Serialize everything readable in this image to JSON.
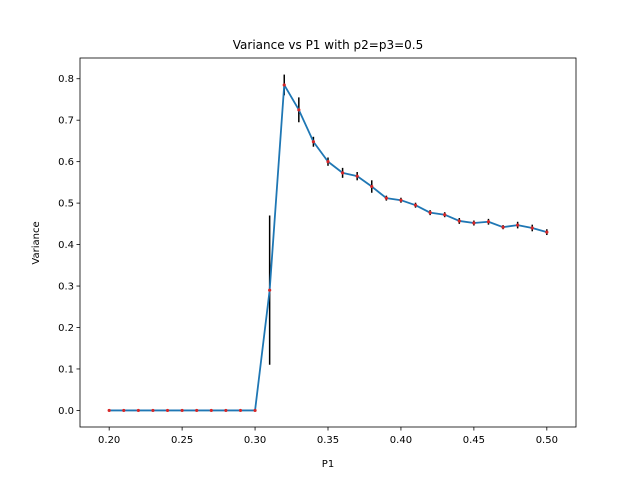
{
  "chart_data": {
    "type": "line",
    "title": "Variance vs P1 with p2=p3=0.5",
    "xlabel": "P1",
    "ylabel": "Variance",
    "xlim": [
      0.18,
      0.52
    ],
    "ylim": [
      -0.04,
      0.85
    ],
    "grid": false,
    "legend": "none",
    "x_ticks": [
      "0.20",
      "0.25",
      "0.30",
      "0.35",
      "0.40",
      "0.45",
      "0.50"
    ],
    "y_ticks": [
      "0.0",
      "0.1",
      "0.2",
      "0.3",
      "0.4",
      "0.5",
      "0.6",
      "0.7",
      "0.8"
    ],
    "colors": {
      "line": "#1f77b4",
      "markers": "#d62728",
      "errorbars": "#000000"
    },
    "series": [
      {
        "x": [
          0.2,
          0.21,
          0.22,
          0.23,
          0.24,
          0.25,
          0.26,
          0.27,
          0.28,
          0.29,
          0.3,
          0.31,
          0.32,
          0.33,
          0.34,
          0.35,
          0.36,
          0.37,
          0.38,
          0.39,
          0.4,
          0.41,
          0.42,
          0.43,
          0.44,
          0.45,
          0.46,
          0.47,
          0.48,
          0.49,
          0.5
        ],
        "y": [
          0.0,
          0.0,
          0.0,
          0.0,
          0.0,
          0.0,
          0.0,
          0.0,
          0.0,
          0.0,
          0.0,
          0.29,
          0.785,
          0.725,
          0.648,
          0.6,
          0.573,
          0.565,
          0.54,
          0.512,
          0.507,
          0.495,
          0.477,
          0.472,
          0.457,
          0.452,
          0.455,
          0.442,
          0.447,
          0.44,
          0.43
        ],
        "yerr": [
          0.0,
          0.0,
          0.0,
          0.0,
          0.0,
          0.0,
          0.0,
          0.0,
          0.0,
          0.0,
          0.0,
          0.18,
          0.025,
          0.03,
          0.012,
          0.01,
          0.012,
          0.01,
          0.015,
          0.006,
          0.006,
          0.006,
          0.006,
          0.006,
          0.007,
          0.006,
          0.007,
          0.005,
          0.008,
          0.008,
          0.007
        ]
      }
    ]
  }
}
